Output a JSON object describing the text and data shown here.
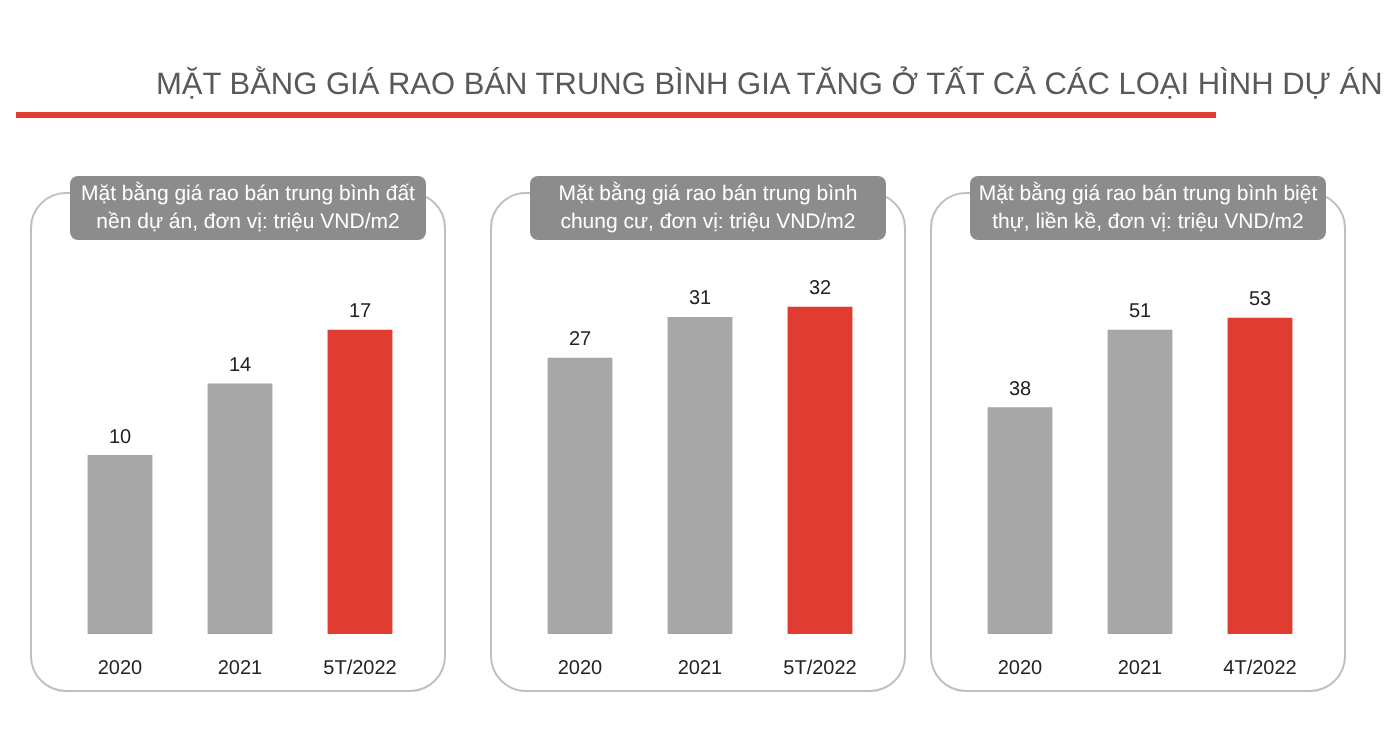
{
  "chart_data": [
    {
      "type": "bar",
      "title": "Mặt bằng giá rao bán trung bình đất nền dự án, đơn vị: triệu VND/m2",
      "annotations": [
        "MẶT BẰNG GIÁ RAO BÁN TRUNG BÌNH GIA TĂNG Ở TẤT CẢ CÁC LOẠI HÌNH DỰ ÁN"
      ],
      "categories": [
        "2020",
        "2021",
        "5T/2022"
      ],
      "values": [
        10,
        14,
        17
      ],
      "colors": [
        "#a6a6a6",
        "#a6a6a6",
        "#e03c31"
      ],
      "data_labels": true,
      "tick_labels": "x",
      "grid": false,
      "legend": false
    },
    {
      "type": "bar",
      "title": "Mặt bằng giá rao bán trung bình chung cư, đơn vị: triệu VND/m2",
      "categories": [
        "2020",
        "2021",
        "5T/2022"
      ],
      "values": [
        27,
        31,
        32
      ],
      "colors": [
        "#a6a6a6",
        "#a6a6a6",
        "#e03c31"
      ],
      "data_labels": true,
      "tick_labels": "x",
      "grid": false,
      "legend": false
    },
    {
      "type": "bar",
      "title": "Mặt bằng giá rao bán trung bình biệt thự, liền kề, đơn vị: triệu VND/m2",
      "categories": [
        "2020",
        "2021",
        "4T/2022"
      ],
      "values": [
        38,
        51,
        53
      ],
      "colors": [
        "#a6a6a6",
        "#a6a6a6",
        "#e03c31"
      ],
      "data_labels": true,
      "tick_labels": "x",
      "grid": false,
      "legend": false
    }
  ]
}
